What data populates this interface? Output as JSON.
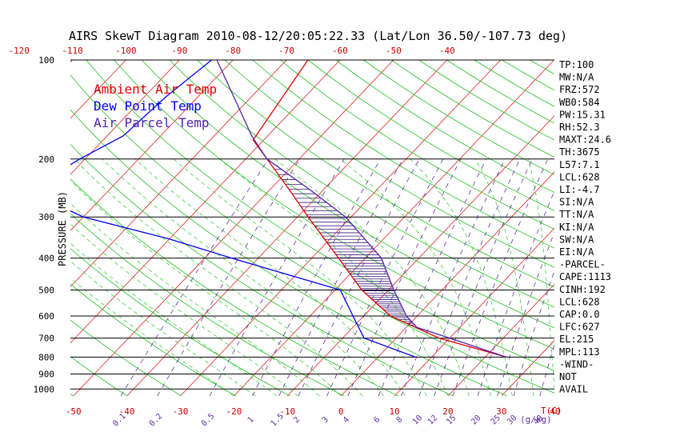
{
  "chart_data": {
    "type": "line",
    "title": "AIRS SkewT Diagram 2010-08-12/20:05:22.33 (Lat/Lon 36.50/-107.73 deg)",
    "ylabel": "PRESSURE (MB)",
    "xlabel": "T(C)",
    "mixing_ratio_unit": "(g/kg)",
    "y_scale": "log",
    "ylim": [
      1000,
      100
    ],
    "xlim_bottom": [
      -50,
      40
    ],
    "pressure_ticks": [
      100,
      200,
      300,
      400,
      500,
      600,
      700,
      800,
      900,
      1000
    ],
    "temp_ticks_bottom": [
      -50,
      -40,
      -30,
      -20,
      -10,
      0,
      10,
      20,
      30,
      40
    ],
    "temp_ticks_top": [
      -120,
      -110,
      -100,
      -90,
      -80,
      -70,
      -60,
      -50,
      -40
    ],
    "mixing_ratio_ticks": [
      "0.1",
      "0.2",
      "0.5",
      "1",
      "1.5",
      "2",
      "3",
      "4",
      "6",
      "8",
      "10",
      "12",
      "15",
      "20",
      "25",
      "30",
      "40"
    ],
    "legend": [
      {
        "label": "Ambient Air Temp",
        "color": "#dd0000"
      },
      {
        "label": "Dew Point Temp",
        "color": "#0000ee"
      },
      {
        "label": "Air Parcel Temp",
        "color": "#5522aa"
      }
    ],
    "series": [
      {
        "name": "Ambient Air Temp",
        "color": "#dd0000",
        "points": [
          [
            100,
            -66
          ],
          [
            175,
            -62
          ],
          [
            200,
            -56
          ],
          [
            250,
            -46
          ],
          [
            300,
            -38
          ],
          [
            400,
            -25
          ],
          [
            500,
            -15
          ],
          [
            600,
            -5
          ],
          [
            700,
            8
          ],
          [
            800,
            24
          ]
        ]
      },
      {
        "name": "Dew Point Temp",
        "color": "#0000ee",
        "points": [
          [
            100,
            -84
          ],
          [
            130,
            -86
          ],
          [
            170,
            -87
          ],
          [
            200,
            -91
          ],
          [
            250,
            -95
          ],
          [
            300,
            -80
          ],
          [
            350,
            -60
          ],
          [
            400,
            -45
          ],
          [
            500,
            -19
          ],
          [
            600,
            -12
          ],
          [
            700,
            -6
          ],
          [
            800,
            7
          ]
        ]
      },
      {
        "name": "Air Parcel Temp",
        "color": "#5522aa",
        "points": [
          [
            100,
            -83
          ],
          [
            170,
            -63
          ],
          [
            200,
            -56
          ],
          [
            250,
            -42
          ],
          [
            300,
            -31
          ],
          [
            400,
            -17
          ],
          [
            500,
            -9
          ],
          [
            600,
            -2
          ],
          [
            650,
            2
          ],
          [
            700,
            10
          ],
          [
            800,
            24
          ]
        ]
      }
    ],
    "indices": [
      "TP:100",
      "MW:N/A",
      "FRZ:572",
      "WB0:584",
      "PW:15.31",
      "RH:52.3",
      "MAXT:24.6",
      "TH:3675",
      "L57:7.1",
      "LCL:628",
      "LI:-4.7",
      "SI:N/A",
      "TT:N/A",
      "KI:N/A",
      "SW:N/A",
      "EI:N/A",
      "-PARCEL-",
      "CAPE:1113",
      "CINH:192",
      "LCL:628",
      "CAP:0.0",
      "LFC:627",
      "EL:215",
      "MPL:113",
      "-WIND-",
      "NOT",
      "AVAIL"
    ],
    "colors": {
      "isotherm": "#e02020",
      "dry_adiabat": "#20c020",
      "moist_adiabat": "#40d040",
      "mixing_ratio": "#6030a0",
      "isobar": "#000000",
      "tick_bottom": "#cc0000",
      "tick_top": "#cc0000",
      "pressure_label": "#000000",
      "mr_label": "#6030a0"
    }
  }
}
